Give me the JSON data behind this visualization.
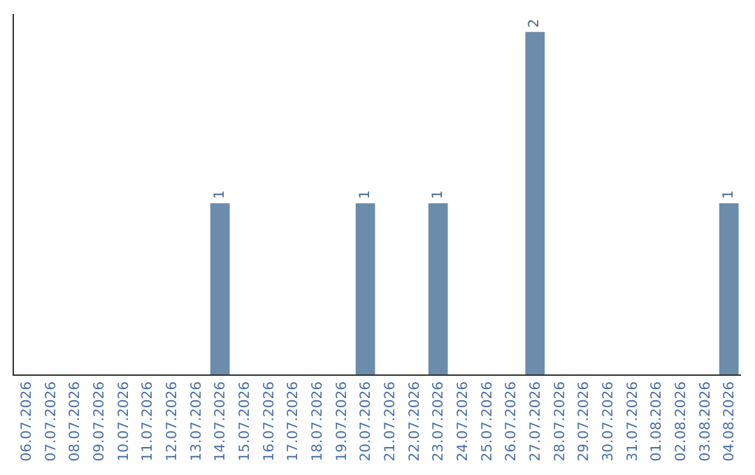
{
  "chart_data": {
    "type": "bar",
    "categories": [
      "06.07.2026",
      "07.07.2026",
      "08.07.2026",
      "09.07.2026",
      "10.07.2026",
      "11.07.2026",
      "12.07.2026",
      "13.07.2026",
      "14.07.2026",
      "15.07.2026",
      "16.07.2026",
      "17.07.2026",
      "18.07.2026",
      "19.07.2026",
      "20.07.2026",
      "21.07.2026",
      "22.07.2026",
      "23.07.2026",
      "24.07.2026",
      "25.07.2026",
      "26.07.2026",
      "27.07.2026",
      "28.07.2026",
      "29.07.2026",
      "30.07.2026",
      "31.07.2026",
      "01.08.2026",
      "02.08.2026",
      "03.08.2026",
      "04.08.2026"
    ],
    "values": [
      0,
      0,
      0,
      0,
      0,
      0,
      0,
      0,
      1,
      0,
      0,
      0,
      0,
      0,
      1,
      0,
      0,
      1,
      0,
      0,
      0,
      2,
      0,
      0,
      0,
      0,
      0,
      0,
      0,
      1
    ],
    "value_labels": [
      null,
      null,
      null,
      null,
      null,
      null,
      null,
      null,
      "1",
      null,
      null,
      null,
      null,
      null,
      "1",
      null,
      null,
      "1",
      null,
      null,
      null,
      "2",
      null,
      null,
      null,
      null,
      null,
      null,
      null,
      "1"
    ],
    "color": "#6b8cab",
    "grid": false,
    "legend": false,
    "tick_labels": "x"
  }
}
